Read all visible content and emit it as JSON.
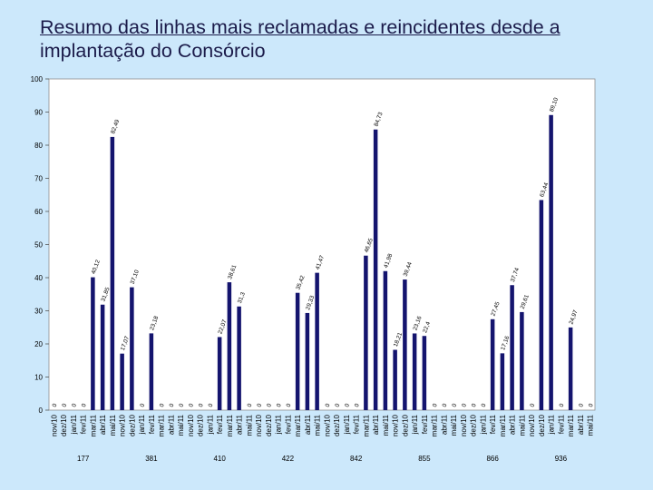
{
  "slide": {
    "title_line1": "Resumo das linhas mais reclamadas e reincidentes desde a",
    "title_line2": "implantação do Consórcio"
  },
  "colors": {
    "background": "#cce8fb",
    "plot_background": "#ffffff",
    "bar": "#14146e",
    "text": "#1b1b4a"
  },
  "chart_data": {
    "type": "bar",
    "title": "",
    "xlabel": "",
    "ylabel": "",
    "ylim": [
      0,
      100
    ],
    "yticks": [
      0,
      10,
      20,
      30,
      40,
      50,
      60,
      70,
      80,
      90,
      100
    ],
    "grid": false,
    "legend": "none",
    "categories": [
      "nov/10",
      "dez/10",
      "jan/11",
      "fev/11",
      "mar/11",
      "abr/11",
      "mai/11",
      "nov/10",
      "dez/10",
      "jan/11",
      "fev/11",
      "mar/11",
      "abr/11",
      "mai/11",
      "nov/10",
      "dez/10",
      "jan/11",
      "fev/11",
      "mar/11",
      "abr/11",
      "mai/11",
      "nov/10",
      "dez/10",
      "jan/11",
      "fev/11",
      "mar/11",
      "abr/11",
      "mai/11",
      "nov/10",
      "dez/10",
      "jan/11",
      "fev/11",
      "mar/11",
      "abr/11",
      "mai/11",
      "nov/10",
      "dez/10",
      "jan/11",
      "fev/11",
      "mar/11",
      "abr/11",
      "mai/11",
      "nov/10",
      "dez/10",
      "jan/11",
      "fev/11",
      "mar/11",
      "abr/11",
      "mai/11",
      "nov/10",
      "dez/10",
      "jan/11",
      "fev/11",
      "mar/11",
      "abr/11",
      "mai/11"
    ],
    "values": [
      0,
      0,
      0,
      0,
      40.12,
      31.85,
      82.49,
      17.07,
      37.1,
      0,
      23.18,
      0,
      0,
      0,
      0,
      0,
      0,
      22.07,
      38.61,
      31.3,
      0,
      0,
      0,
      0,
      0,
      35.42,
      29.33,
      41.47,
      0,
      0,
      0,
      0,
      46.65,
      84.73,
      41.98,
      18.21,
      39.44,
      23.16,
      22.4,
      0,
      0,
      0,
      0,
      0,
      0,
      27.45,
      17.16,
      37.74,
      29.61,
      0,
      63.44,
      89.1,
      0,
      24.97,
      0,
      0
    ],
    "data_labels": [
      "0",
      "0",
      "0",
      "0",
      "40,12",
      "31,85",
      "82,49",
      "17,07",
      "37,10",
      "0",
      "23,18",
      "0",
      "0",
      "0",
      "0",
      "0",
      "0",
      "22,07",
      "38,61",
      "31,3",
      "0",
      "0",
      "0",
      "0",
      "0",
      "35,42",
      "29,33",
      "41,47",
      "0",
      "0",
      "0",
      "0",
      "46,65",
      "84,73",
      "41,98",
      "18,21",
      "39,44",
      "23,16",
      "22,4",
      "0",
      "0",
      "0",
      "0",
      "0",
      "0",
      "27,45",
      "17,16",
      "37,74",
      "29,61",
      "0",
      "63,44",
      "89,10",
      "0",
      "24,97",
      "0",
      "0"
    ],
    "groups": [
      {
        "label": "177"
      },
      {
        "label": "381"
      },
      {
        "label": "410"
      },
      {
        "label": "422"
      },
      {
        "label": "842"
      },
      {
        "label": "855"
      },
      {
        "label": "866"
      },
      {
        "label": "936"
      }
    ],
    "group_size": 7
  }
}
